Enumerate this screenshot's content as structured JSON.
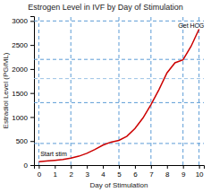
{
  "chart_data": {
    "type": "line",
    "title": "Estrogen Level in IVF by Day of Stimulation",
    "x_label": "Day of Stimulation",
    "y_label": "Estradiol Level (PG/ML)",
    "xlim": [
      -0.3,
      10.3
    ],
    "ylim": [
      0,
      3100
    ],
    "xticks": [
      0,
      1,
      2,
      3,
      4,
      5,
      6,
      7,
      8,
      9,
      10
    ],
    "yticks": [
      0,
      500,
      1000,
      1500,
      2000,
      2500,
      3000
    ],
    "x": [
      0,
      0.3,
      0.6,
      1,
      1.5,
      2,
      2.5,
      3,
      3.5,
      4,
      4.5,
      5,
      5.5,
      6,
      6.5,
      7,
      7.5,
      8,
      8.5,
      9,
      9.5,
      10
    ],
    "values": [
      70,
      78,
      88,
      100,
      118,
      145,
      185,
      245,
      325,
      415,
      478,
      515,
      600,
      760,
      980,
      1260,
      1570,
      1920,
      2130,
      2190,
      2470,
      2830
    ],
    "color": "#cc0000",
    "grid": false,
    "hlines": [
      {
        "value": 3000,
        "color": "#5b9bd5"
      },
      {
        "value": 2200,
        "color": "#5b9bd5"
      },
      {
        "value": 1800,
        "color": "#9dc3e6"
      },
      {
        "value": 1300,
        "color": "#5b9bd5"
      },
      {
        "value": 450,
        "color": "#5b9bd5"
      }
    ],
    "vlines": [
      {
        "value": 0,
        "color": "#5b9bd5"
      },
      {
        "value": 2,
        "color": "#5b9bd5"
      },
      {
        "value": 5,
        "color": "#5b9bd5"
      },
      {
        "value": 7,
        "color": "#5b9bd5"
      },
      {
        "value": 9,
        "color": "#5b9bd5"
      },
      {
        "value": 10,
        "color": "#5b9bd5"
      }
    ],
    "annotations": [
      {
        "text": "Start stim",
        "x": 0.1,
        "y": 165
      },
      {
        "text": "Get HCG",
        "x": 8.7,
        "y": 2980
      }
    ]
  }
}
